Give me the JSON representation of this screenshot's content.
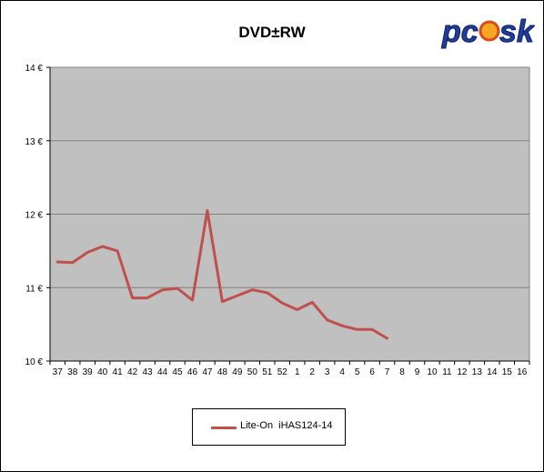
{
  "logo_text": "pcusk",
  "chart_data": {
    "type": "line",
    "title": "DVD±RW",
    "xlabel": "",
    "ylabel": "",
    "categories": [
      "37",
      "38",
      "39",
      "40",
      "41",
      "42",
      "43",
      "44",
      "45",
      "46",
      "47",
      "48",
      "49",
      "50",
      "51",
      "52",
      "1",
      "2",
      "3",
      "4",
      "5",
      "6",
      "7",
      "8",
      "9",
      "10",
      "11",
      "12",
      "13",
      "14",
      "15",
      "16"
    ],
    "y_ticks": [
      "10 €",
      "11 €",
      "12 €",
      "13 €",
      "14 €"
    ],
    "ylim": [
      10,
      14
    ],
    "grid": true,
    "legend_position": "bottom",
    "series": [
      {
        "name": "Lite-On  iHAS124-14",
        "color": "#c0504d",
        "values": [
          11.35,
          11.34,
          11.48,
          11.56,
          11.5,
          10.86,
          10.86,
          10.97,
          10.99,
          10.83,
          12.05,
          10.81,
          10.89,
          10.97,
          10.93,
          10.79,
          10.7,
          10.8,
          10.56,
          10.48,
          10.43,
          10.43,
          10.31,
          null,
          null,
          null,
          null,
          null,
          null,
          null,
          null,
          null
        ]
      }
    ]
  },
  "colors": {
    "plot_background": "#c0c0c0",
    "gridline": "#808080",
    "series": "#c0504d"
  }
}
